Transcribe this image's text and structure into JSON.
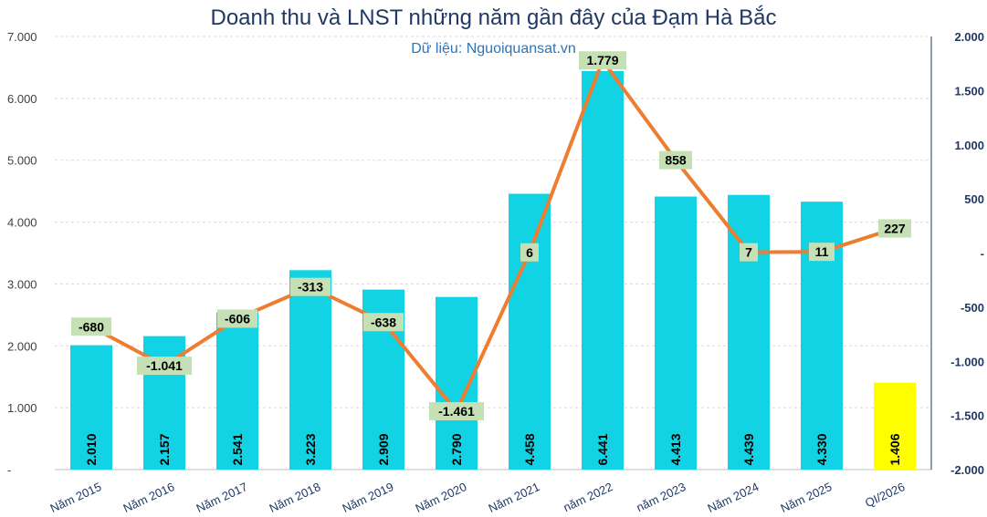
{
  "chart_data": {
    "type": "bar",
    "title": "Doanh thu và LNST những năm gần đây của Đạm Hà Bắc",
    "subtitle": "Dữ liệu: Nguoiquansat.vn",
    "categories": [
      "Năm 2015",
      "Năm 2016",
      "Năm 2017",
      "Năm 2018",
      "Năm 2019",
      "Năm 2020",
      "Năm 2021",
      "năm 2022",
      "năm 2023",
      "Năm 2024",
      "Năm 2025",
      "QI/2026"
    ],
    "series": [
      {
        "type": "bar",
        "axis": "left",
        "values": [
          2010,
          2157,
          2541,
          3223,
          2909,
          2790,
          4458,
          6441,
          4413,
          4439,
          4330,
          1406
        ],
        "labels": [
          "2.010",
          "2.157",
          "2.541",
          "3.223",
          "2.909",
          "2.790",
          "4.458",
          "6.441",
          "4.413",
          "4.439",
          "4.330",
          "1.406"
        ],
        "colors": [
          "#12d3e4",
          "#12d3e4",
          "#12d3e4",
          "#12d3e4",
          "#12d3e4",
          "#12d3e4",
          "#12d3e4",
          "#12d3e4",
          "#12d3e4",
          "#12d3e4",
          "#12d3e4",
          "#ffff00"
        ]
      },
      {
        "type": "line",
        "axis": "right",
        "color": "#ed7d31",
        "values": [
          -680,
          -1041,
          -606,
          -313,
          -638,
          -1461,
          6,
          1779,
          858,
          7,
          11,
          227
        ],
        "labels": [
          "-680",
          "-1.041",
          "-606",
          "-313",
          "-638",
          "-1.461",
          "6",
          "1.779",
          "858",
          "7",
          "11",
          "227"
        ]
      }
    ],
    "y_left": {
      "min": 0,
      "max": 7000,
      "ticks": [
        {
          "v": 0,
          "label": "-"
        },
        {
          "v": 1000,
          "label": "1.000"
        },
        {
          "v": 2000,
          "label": "2.000"
        },
        {
          "v": 3000,
          "label": "3.000"
        },
        {
          "v": 4000,
          "label": "4.000"
        },
        {
          "v": 5000,
          "label": "5.000"
        },
        {
          "v": 6000,
          "label": "6.000"
        },
        {
          "v": 7000,
          "label": "7.000"
        }
      ]
    },
    "y_right": {
      "min": -2000,
      "max": 2000,
      "ticks": [
        {
          "v": -2000,
          "label": "-2.000"
        },
        {
          "v": -1500,
          "label": "-1.500"
        },
        {
          "v": -1000,
          "label": "-1.000"
        },
        {
          "v": -500,
          "label": "-500"
        },
        {
          "v": 0,
          "label": "-"
        },
        {
          "v": 500,
          "label": "500"
        },
        {
          "v": 1000,
          "label": "1.000"
        },
        {
          "v": 1500,
          "label": "1.500"
        },
        {
          "v": 2000,
          "label": "2.000"
        }
      ]
    },
    "grid": true,
    "label_bg_color": "#c5e0b4"
  }
}
